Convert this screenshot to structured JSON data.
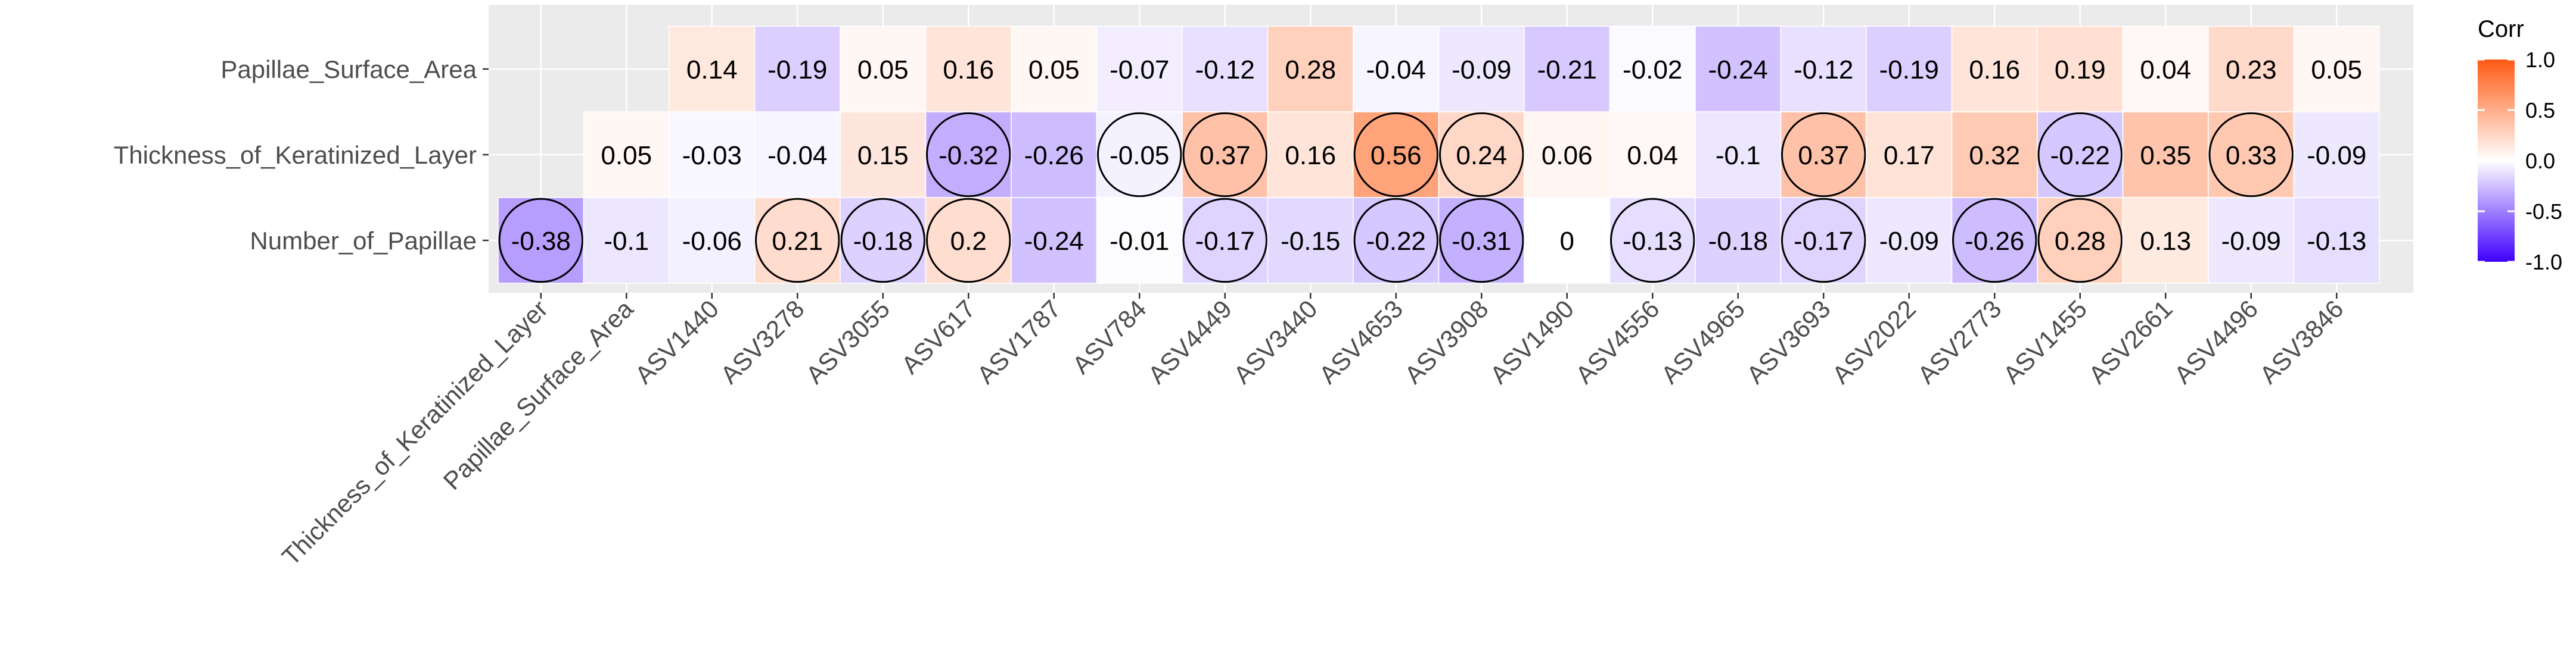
{
  "chart_data": {
    "type": "heatmap",
    "title": "",
    "xlabel": "",
    "ylabel": "",
    "x_categories": [
      "Thickness_of_Keratinized_Layer",
      "Papillae_Surface_Area",
      "ASV1440",
      "ASV3278",
      "ASV3055",
      "ASV617",
      "ASV1787",
      "ASV784",
      "ASV4449",
      "ASV3440",
      "ASV4653",
      "ASV3908",
      "ASV1490",
      "ASV4556",
      "ASV4965",
      "ASV3693",
      "ASV2022",
      "ASV2773",
      "ASV1455",
      "ASV2661",
      "ASV4496",
      "ASV3846"
    ],
    "y_categories": [
      "Papillae_Surface_Area",
      "Thickness_of_Keratinized_Layer",
      "Number_of_Papillae"
    ],
    "values": [
      [
        null,
        null,
        0.14,
        -0.19,
        0.05,
        0.16,
        0.05,
        -0.07,
        -0.12,
        0.28,
        -0.04,
        -0.09,
        -0.21,
        -0.02,
        -0.24,
        -0.12,
        -0.19,
        0.16,
        0.19,
        0.04,
        0.23,
        0.05
      ],
      [
        null,
        0.05,
        -0.03,
        -0.04,
        0.15,
        -0.32,
        -0.26,
        -0.05,
        0.37,
        0.16,
        0.56,
        0.24,
        0.06,
        0.04,
        -0.1,
        0.37,
        0.17,
        0.32,
        -0.22,
        0.35,
        0.33,
        -0.09
      ],
      [
        -0.38,
        -0.1,
        -0.06,
        0.21,
        -0.18,
        0.2,
        -0.24,
        -0.01,
        -0.17,
        -0.15,
        -0.22,
        -0.31,
        0,
        -0.13,
        -0.18,
        -0.17,
        -0.09,
        -0.26,
        0.28,
        0.13,
        -0.09,
        -0.13
      ]
    ],
    "labels": [
      [
        null,
        null,
        "0.14",
        "-0.19",
        "0.05",
        "0.16",
        "0.05",
        "-0.07",
        "-0.12",
        "0.28",
        "-0.04",
        "-0.09",
        "-0.21",
        "-0.02",
        "-0.24",
        "-0.12",
        "-0.19",
        "0.16",
        "0.19",
        "0.04",
        "0.23",
        "0.05"
      ],
      [
        null,
        "0.05",
        "-0.03",
        "-0.04",
        "0.15",
        "-0.32",
        "-0.26",
        "-0.05",
        "0.37",
        "0.16",
        "0.56",
        "0.24",
        "0.06",
        "0.04",
        "-0.1",
        "0.37",
        "0.17",
        "0.32",
        "-0.22",
        "0.35",
        "0.33",
        "-0.09"
      ],
      [
        "-0.38",
        "-0.1",
        "-0.06",
        "0.21",
        "-0.18",
        "0.2",
        "-0.24",
        "-0.01",
        "-0.17",
        "-0.15",
        "-0.22",
        "-0.31",
        "0",
        "-0.13",
        "-0.18",
        "-0.17",
        "-0.09",
        "-0.26",
        "0.28",
        "0.13",
        "-0.09",
        "-0.13"
      ]
    ],
    "circled": [
      [
        false,
        false,
        false,
        false,
        false,
        false,
        false,
        false,
        false,
        false,
        false,
        false,
        false,
        false,
        false,
        false,
        false,
        false,
        false,
        false,
        false,
        false
      ],
      [
        false,
        false,
        false,
        false,
        false,
        true,
        false,
        true,
        true,
        false,
        true,
        true,
        false,
        false,
        false,
        true,
        false,
        false,
        true,
        false,
        true,
        false
      ],
      [
        true,
        false,
        false,
        true,
        true,
        true,
        false,
        false,
        true,
        false,
        true,
        true,
        false,
        true,
        false,
        true,
        false,
        true,
        true,
        false,
        false,
        false
      ]
    ],
    "color_scale": {
      "low": "#3f00ff",
      "mid": "#ffffff",
      "high": "#ff5a13",
      "min": -1,
      "max": 1
    },
    "legend": {
      "title": "Corr",
      "ticks": [
        "1.0",
        "0.5",
        "0.0",
        "-0.5",
        "-1.0"
      ],
      "tick_values": [
        1,
        0.5,
        0,
        -0.5,
        -1
      ],
      "position": "right"
    },
    "panel_background": "#ebebeb",
    "grid": true
  }
}
